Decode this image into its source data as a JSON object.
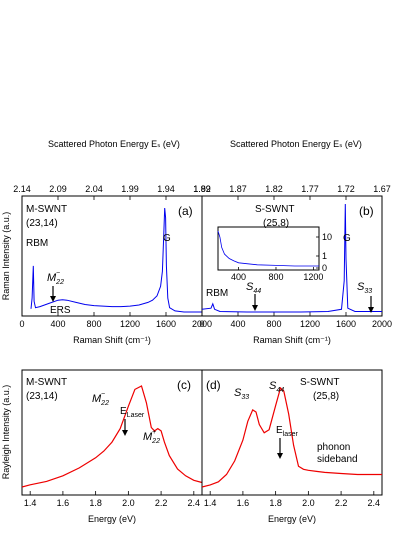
{
  "chart_data": [
    {
      "panel": "(a)",
      "type": "line",
      "xlabel": "Raman Shift (cm⁻¹)",
      "ylabel": "Raman Intensity (a.u.)",
      "top_xlabel": "Scattered Photon Energy Eₛ (eV)",
      "xlim": [
        0,
        2000
      ],
      "xticks": [
        0,
        400,
        800,
        1200,
        1600,
        2000
      ],
      "top_ticks": [
        "2.14",
        "2.09",
        "2.04",
        "1.99",
        "1.94",
        "1.89"
      ],
      "color": "#0000ee",
      "annotations": {
        "sample": "M-SWNT",
        "chirality": "(23,14)",
        "rbm": "RBM",
        "g": "G",
        "ers": "ERS",
        "m22": "M",
        "m22_sub": "22",
        "m22_sup": "−"
      },
      "x": [
        100,
        112,
        125,
        135,
        150,
        200,
        300,
        400,
        450,
        500,
        600,
        700,
        800,
        900,
        1000,
        1100,
        1200,
        1300,
        1400,
        1450,
        1500,
        1540,
        1560,
        1575,
        1585,
        1595,
        1605,
        1620,
        1640,
        1700,
        1800,
        1900,
        2000
      ],
      "y": [
        0.05,
        0.15,
        0.45,
        0.12,
        0.06,
        0.07,
        0.1,
        0.13,
        0.135,
        0.13,
        0.11,
        0.09,
        0.08,
        0.075,
        0.07,
        0.07,
        0.075,
        0.085,
        0.11,
        0.13,
        0.17,
        0.26,
        0.4,
        0.75,
        0.99,
        0.9,
        0.45,
        0.15,
        0.06,
        0.03,
        0.02,
        0.02,
        0.02
      ]
    },
    {
      "panel": "(b)",
      "type": "line",
      "xlabel": "Raman Shift (cm⁻¹)",
      "top_xlabel": "Scattered Photon Energy Eₛ (eV)",
      "xlim": [
        0,
        2000
      ],
      "xticks": [
        0,
        400,
        800,
        1200,
        1600,
        2000
      ],
      "top_ticks": [
        "1.92",
        "1.87",
        "1.82",
        "1.77",
        "1.72",
        "1.67"
      ],
      "color": "#0000ee",
      "annotations": {
        "sample": "S-SWNT",
        "chirality": "(25,8)",
        "rbm": "RBM",
        "g": "G",
        "s44": "S",
        "s44_sub": "44",
        "s33": "S",
        "s33_sub": "33"
      },
      "x": [
        0,
        100,
        120,
        140,
        200,
        500,
        800,
        1100,
        1400,
        1550,
        1580,
        1592,
        1600,
        1620,
        1700,
        1900,
        2000
      ],
      "y": [
        0.04,
        0.05,
        0.09,
        0.04,
        0.02,
        0.015,
        0.015,
        0.015,
        0.02,
        0.04,
        0.3,
        1.0,
        0.5,
        0.05,
        0.02,
        0.02,
        0.02
      ],
      "inset": {
        "xticks": [
          400,
          800,
          1200
        ],
        "yticks": [
          "0",
          "1",
          "10"
        ],
        "xlim": [
          180,
          1260
        ],
        "x": [
          180,
          200,
          220,
          250,
          300,
          350,
          400,
          500,
          600,
          800,
          1000,
          1200,
          1260
        ],
        "y": [
          12,
          8,
          4,
          2.5,
          1.8,
          1.5,
          1.3,
          1.2,
          1.1,
          1.05,
          1.0,
          1.0,
          1.0
        ]
      }
    },
    {
      "panel": "(c)",
      "type": "line",
      "xlabel": "Energy (eV)",
      "ylabel": "Rayleigh Intensity (a.u.)",
      "xlim": [
        1.35,
        2.45
      ],
      "xticks": [
        1.4,
        1.6,
        1.8,
        2.0,
        2.2,
        2.4
      ],
      "color": "#ee0000",
      "annotations": {
        "sample": "M-SWNT",
        "chirality": "(23,14)",
        "m22m": "M",
        "m22m_sub": "22",
        "m22m_sup": "−",
        "m22p": "M",
        "m22p_sub": "22",
        "m22p_sup": "+",
        "laser": "E",
        "laser_sub": "Laser"
      },
      "x": [
        1.35,
        1.4,
        1.5,
        1.6,
        1.7,
        1.8,
        1.85,
        1.9,
        1.95,
        2.0,
        2.04,
        2.08,
        2.11,
        2.14,
        2.16,
        2.18,
        2.2,
        2.22,
        2.25,
        2.3,
        2.35,
        2.4,
        2.45
      ],
      "y": [
        0.1,
        0.12,
        0.15,
        0.2,
        0.27,
        0.36,
        0.42,
        0.5,
        0.62,
        0.82,
        0.97,
        1.0,
        0.85,
        0.63,
        0.6,
        0.62,
        0.6,
        0.5,
        0.38,
        0.26,
        0.2,
        0.16,
        0.14
      ]
    },
    {
      "panel": "(d)",
      "type": "line",
      "xlabel": "Energy (eV)",
      "xlim": [
        1.35,
        2.45
      ],
      "xticks": [
        1.4,
        1.6,
        1.8,
        2.0,
        2.2,
        2.4
      ],
      "color": "#ee0000",
      "annotations": {
        "sample": "S-SWNT",
        "chirality": "(25,8)",
        "s33": "S",
        "s33_sub": "33",
        "s44": "S",
        "s44_sub": "44",
        "laser": "E",
        "laser_sub": "laser",
        "phonon1": "phonon",
        "phonon2": "sideband"
      },
      "x": [
        1.35,
        1.4,
        1.45,
        1.5,
        1.55,
        1.6,
        1.63,
        1.66,
        1.68,
        1.7,
        1.73,
        1.76,
        1.8,
        1.83,
        1.85,
        1.88,
        1.91,
        1.94,
        1.97,
        2.0,
        2.05,
        2.1,
        2.2,
        2.3,
        2.4,
        2.45
      ],
      "y": [
        0.0,
        0.02,
        0.05,
        0.12,
        0.25,
        0.45,
        0.63,
        0.74,
        0.72,
        0.6,
        0.52,
        0.55,
        0.78,
        0.95,
        0.92,
        0.7,
        0.4,
        0.2,
        0.17,
        0.16,
        0.15,
        0.14,
        0.13,
        0.12,
        0.12,
        0.12
      ]
    }
  ]
}
